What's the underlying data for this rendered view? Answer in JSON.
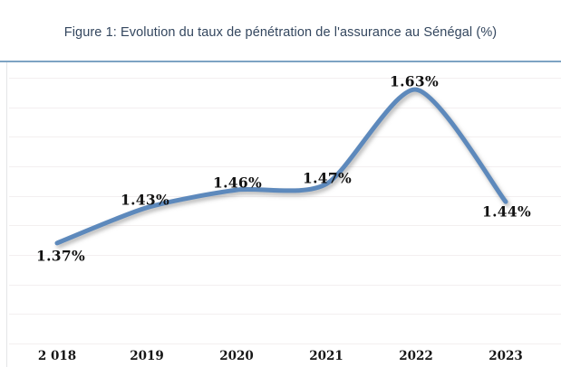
{
  "figure": {
    "title": "Figure 1: Evolution du taux de pénétration de l'assurance au Sénégal (%)"
  },
  "colors": {
    "title_text": "#33465e",
    "box_top_border": "#7da3c3",
    "box_left_border": "#e4e5e7",
    "gridline": "#f3eff0",
    "line": "#5d89bc",
    "shadow": "rgba(105,105,105,0.5)",
    "label_text": "#121212"
  },
  "chart_data": {
    "type": "line",
    "title": "Figure 1: Evolution du taux de pénétration de l'assurance au Sénégal (%)",
    "categories": [
      "2 018",
      "2019",
      "2020",
      "2021",
      "2022",
      "2023"
    ],
    "values": [
      1.37,
      1.43,
      1.46,
      1.47,
      1.63,
      1.44
    ],
    "value_labels": [
      "1.37%",
      "1.43%",
      "1.46%",
      "1.47%",
      "1.63%",
      "1.44%"
    ],
    "xlabel": "",
    "ylabel": "",
    "ylim": [
      1.2,
      1.65
    ],
    "grid_step": 0.05,
    "grid": true,
    "legend": false,
    "smooth": true,
    "y_axis_labels_visible": false
  }
}
